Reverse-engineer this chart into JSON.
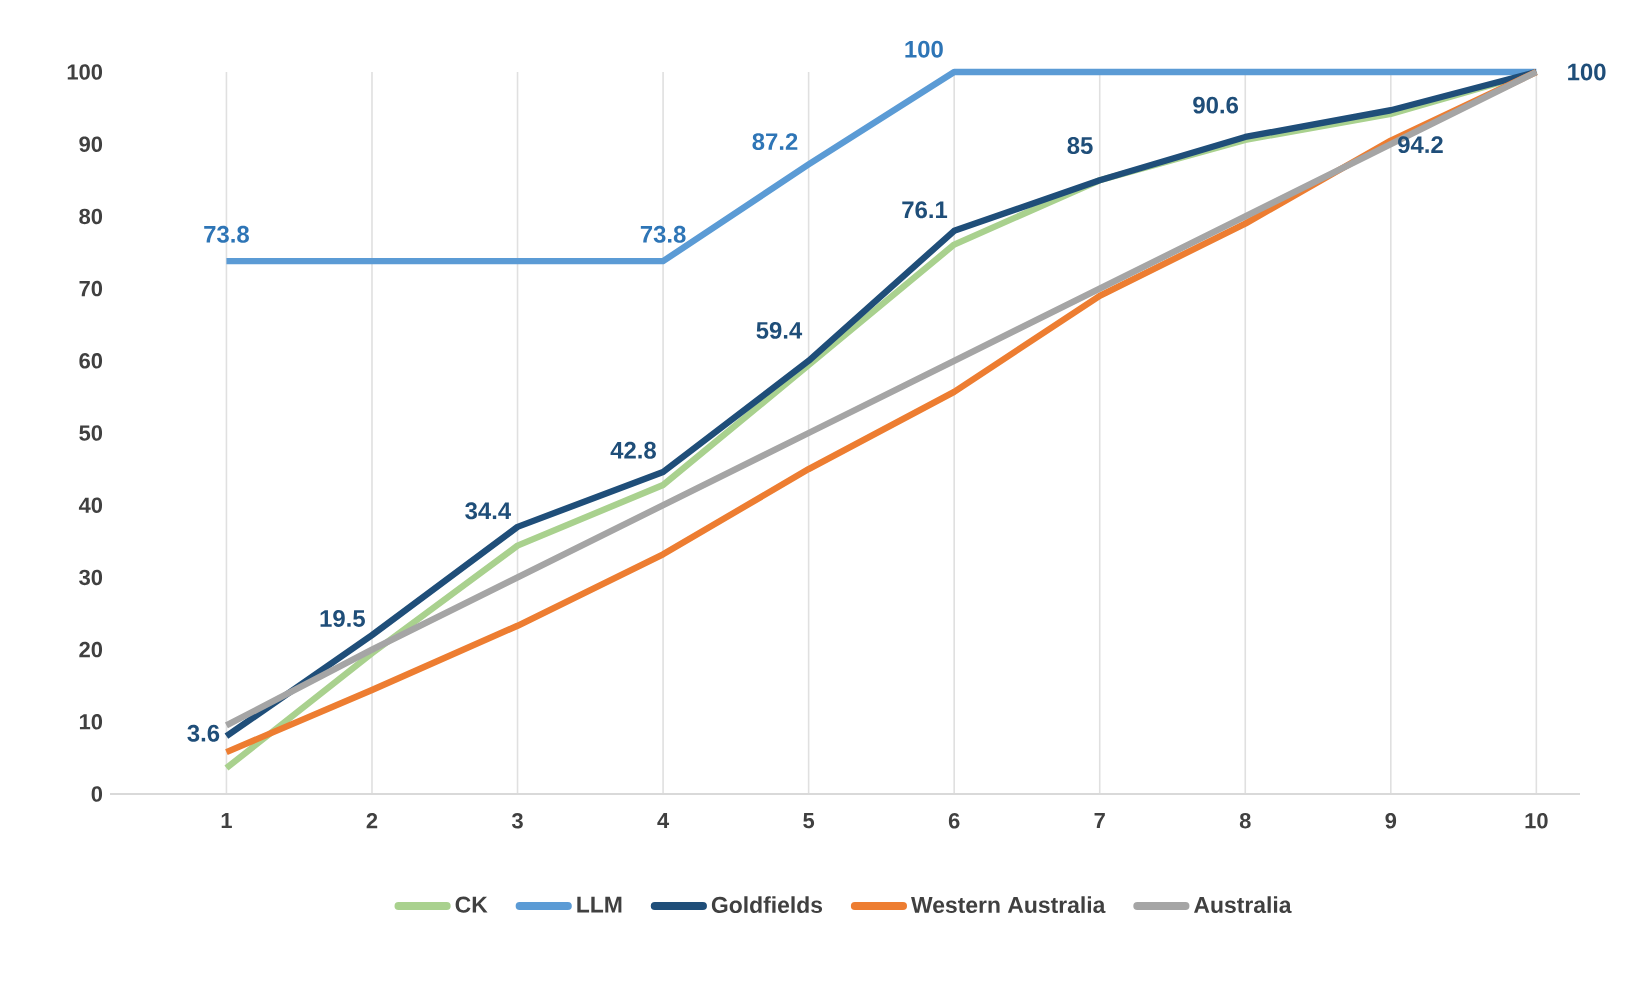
{
  "chart_data": {
    "type": "line",
    "x": [
      1,
      2,
      3,
      4,
      5,
      6,
      7,
      8,
      9,
      10
    ],
    "xlim": [
      0.2,
      10.3
    ],
    "xticks": [
      1,
      2,
      3,
      4,
      5,
      6,
      7,
      8,
      9,
      10
    ],
    "ylim": [
      0,
      100
    ],
    "yticks": [
      0,
      10,
      20,
      30,
      40,
      50,
      60,
      70,
      80,
      90,
      100
    ],
    "grid": "x",
    "legend": "bottom",
    "marker": "none",
    "line_style": "solid",
    "series": [
      {
        "name": "CK",
        "color": "#a9d18e",
        "values": [
          3.6,
          19.5,
          34.4,
          42.8,
          59.4,
          76.1,
          85,
          90.6,
          94.2,
          100
        ],
        "value_labels": [
          "3.6",
          "19.5",
          "34.4",
          "42.8",
          "59.4",
          "76.1",
          "85",
          "90.6",
          "94.2",
          "100"
        ]
      },
      {
        "name": "LLM",
        "color": "#5b9bd5",
        "values": [
          73.8,
          73.8,
          73.8,
          73.8,
          87.2,
          100,
          100,
          100,
          100,
          100
        ],
        "value_labels": [
          "73.8",
          null,
          null,
          "73.8",
          "87.2",
          "100",
          null,
          null,
          null,
          null
        ]
      },
      {
        "name": "Goldfields",
        "color": "#1f4e79",
        "values": [
          8,
          22,
          37,
          44.6,
          60,
          78,
          85,
          91,
          94.7,
          100
        ]
      },
      {
        "name": "Western Australia",
        "color": "#ed7d31",
        "values": [
          5.8,
          14.4,
          23.3,
          33.2,
          45,
          55.7,
          69,
          79,
          90.5,
          100
        ]
      },
      {
        "name": "Australia",
        "color": "#a5a5a5",
        "values": [
          9.5,
          20,
          30,
          40,
          50,
          60,
          70,
          80,
          90,
          100
        ]
      }
    ]
  }
}
